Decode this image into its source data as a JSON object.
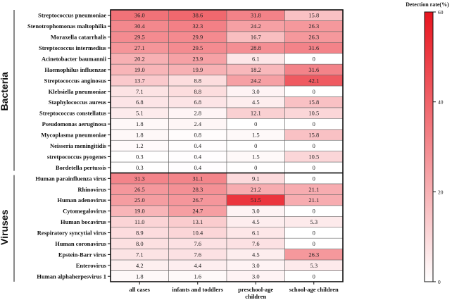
{
  "chart_data": {
    "type": "heatmap",
    "columns": [
      "all cases",
      "infants and toddlers",
      "preschool-age children",
      "school-age children"
    ],
    "groups": [
      {
        "name": "Bacteria",
        "rows": [
          {
            "label": "Streptococcus pneumoniae",
            "values": [
              "36.0",
              "38.6",
              "31.8",
              "15.8"
            ]
          },
          {
            "label": "Stenotrophomonas maltophilia",
            "values": [
              "30.4",
              "32.3",
              "24.2",
              "26.3"
            ]
          },
          {
            "label": "Moraxella catarrhalis",
            "values": [
              "29.5",
              "29.9",
              "16.7",
              "26.3"
            ]
          },
          {
            "label": "Streptococcus intermedius",
            "values": [
              "27.1",
              "29.5",
              "28.8",
              "31.6"
            ]
          },
          {
            "label": "Acinetobacter baumannii",
            "values": [
              "20.2",
              "23.9",
              "6.1",
              "0"
            ]
          },
          {
            "label": "Haemophilus influenzae",
            "values": [
              "19.0",
              "19.9",
              "18.2",
              "31.6"
            ]
          },
          {
            "label": "Streptococcus anginosus",
            "values": [
              "13.7",
              "8.8",
              "24.2",
              "42.1"
            ]
          },
          {
            "label": "Klebsiella pneumoniae",
            "values": [
              "7.1",
              "8.8",
              "3.0",
              "0"
            ]
          },
          {
            "label": "Staphylococcus aureus",
            "values": [
              "6.8",
              "6.8",
              "4.5",
              "15.8"
            ]
          },
          {
            "label": "Streptococcus constellatus",
            "values": [
              "5.1",
              "2.8",
              "12.1",
              "10.5"
            ]
          },
          {
            "label": "Pseudomonas aeruginosa",
            "values": [
              "1.8",
              "2.4",
              "0",
              "0"
            ]
          },
          {
            "label": "Mycoplasma pneumoniae",
            "values": [
              "1.8",
              "0.8",
              "1.5",
              "15.8"
            ]
          },
          {
            "label": "Neisseria meningitidis",
            "values": [
              "1.2",
              "0.4",
              "0",
              "0"
            ]
          },
          {
            "label": "stretpococcus pyogenes",
            "values": [
              "0.3",
              "0.4",
              "1.5",
              "10.5"
            ]
          },
          {
            "label": "Bordetella pertussis",
            "values": [
              "0.3",
              "0.4",
              "0",
              "0"
            ]
          }
        ]
      },
      {
        "name": "Viruses",
        "rows": [
          {
            "label": "Human parainfluenza virus",
            "values": [
              "31.3",
              "31.1",
              "9.1",
              "0"
            ]
          },
          {
            "label": "Rhinovirus",
            "values": [
              "26.5",
              "28.3",
              "21.2",
              "21.1"
            ]
          },
          {
            "label": "Human adenovirus",
            "values": [
              "25.0",
              "26.7",
              "51.5",
              "21.1"
            ]
          },
          {
            "label": "Cytomegalovirus",
            "values": [
              "19.0",
              "24.7",
              "3.0",
              "0"
            ]
          },
          {
            "label": "Human bocavirus",
            "values": [
              "11.0",
              "13.1",
              "4.5",
              "5.3"
            ]
          },
          {
            "label": "Respiratory syncytial virus",
            "values": [
              "8.9",
              "10.4",
              "6.1",
              "0"
            ]
          },
          {
            "label": "Human coronavirus",
            "values": [
              "8.0",
              "7.6",
              "7.6",
              "0"
            ]
          },
          {
            "label": "Epstein-Barr virus",
            "values": [
              "7.1",
              "7.6",
              "4.5",
              "26.3"
            ]
          },
          {
            "label": "Enterovirus",
            "values": [
              "4.2",
              "4.4",
              "3.0",
              "5.3"
            ]
          },
          {
            "label": "Human alphaherpesvirus 1",
            "values": [
              "1.8",
              "1.6",
              "3.0",
              "0"
            ]
          }
        ]
      }
    ],
    "colorbar": {
      "title": "Detection rate(%)",
      "range": [
        0,
        60
      ],
      "ticks": [
        "0",
        "20",
        "40",
        "60"
      ],
      "low_color": "#ffffff",
      "high_color": "#e8141e"
    }
  }
}
